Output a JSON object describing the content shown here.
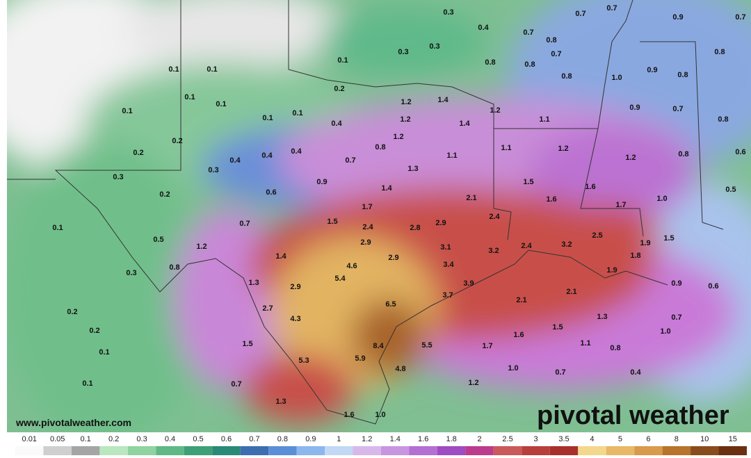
{
  "watermark": "www.pivotalweather.com",
  "logo": "pivotal weather",
  "map_labels": [
    "0.3",
    "0.7",
    "0.7",
    "0.9",
    "0.7",
    "0.4",
    "0.7",
    "0.8",
    "0.8",
    "0.3",
    "0.3",
    "0.1",
    "0.7",
    "0.8",
    "0.8",
    "0.8",
    "0.9",
    "0.8",
    "1.0",
    "0.1",
    "0.1",
    "0.2",
    "0.1",
    "0.1",
    "0.1",
    "0.1",
    "0.1",
    "0.4",
    "1.2",
    "1.4",
    "1.2",
    "0.9",
    "0.7",
    "0.8",
    "1.2",
    "1.4",
    "1.1",
    "0.2",
    "0.2",
    "1.2",
    "0.8",
    "1.1",
    "1.2",
    "1.2",
    "0.8",
    "0.6",
    "0.4",
    "0.4",
    "0.4",
    "0.7",
    "1.1",
    "1.3",
    "0.3",
    "0.3",
    "0.9",
    "1.5",
    "1.6",
    "0.5",
    "1.4",
    "0.2",
    "0.6",
    "2.1",
    "1.6",
    "1.0",
    "1.7",
    "1.7",
    "1.5",
    "2.4",
    "0.7",
    "0.1",
    "2.4",
    "2.8",
    "2.9",
    "2.5",
    "0.5",
    "1.2",
    "2.9",
    "3.1",
    "3.2",
    "2.4",
    "3.2",
    "1.9",
    "1.5",
    "1.4",
    "2.9",
    "4.6",
    "3.4",
    "1.8",
    "0.8",
    "0.3",
    "1.9",
    "5.4",
    "3.9",
    "1.3",
    "2.9",
    "0.9",
    "0.6",
    "2.1",
    "3.7",
    "2.1",
    "6.5",
    "2.7",
    "0.2",
    "1.3",
    "4.3",
    "0.7",
    "1.5",
    "0.2",
    "1.0",
    "1.6",
    "1.5",
    "0.1",
    "8.4",
    "5.5",
    "1.7",
    "1.1",
    "0.8",
    "5.3",
    "5.9",
    "4.8",
    "1.0",
    "0.7",
    "0.4",
    "0.1",
    "0.7",
    "1.2",
    "1.3",
    "1.6",
    "1.0"
  ],
  "colorbar": [
    {
      "label": "0.01",
      "color": "#fafafa"
    },
    {
      "label": "0.05",
      "color": "#cfcfcf"
    },
    {
      "label": "0.1",
      "color": "#a5a5a5"
    },
    {
      "label": "0.2",
      "color": "#b9e7c0"
    },
    {
      "label": "0.3",
      "color": "#8fd3a0"
    },
    {
      "label": "0.4",
      "color": "#5fb885"
    },
    {
      "label": "0.5",
      "color": "#3f9f76"
    },
    {
      "label": "0.6",
      "color": "#2a8a78"
    },
    {
      "label": "0.7",
      "color": "#3d6fb0"
    },
    {
      "label": "0.8",
      "color": "#5a8fd8"
    },
    {
      "label": "0.9",
      "color": "#8cb6ee"
    },
    {
      "label": "1",
      "color": "#c2d8f4"
    },
    {
      "label": "1.2",
      "color": "#d8b8ea"
    },
    {
      "label": "1.4",
      "color": "#c896e0"
    },
    {
      "label": "1.6",
      "color": "#b36fd2"
    },
    {
      "label": "1.8",
      "color": "#9f4bc2"
    },
    {
      "label": "2",
      "color": "#bb3c8c"
    },
    {
      "label": "2.5",
      "color": "#c85a5a"
    },
    {
      "label": "3",
      "color": "#b8403c"
    },
    {
      "label": "3.5",
      "color": "#a8302c"
    },
    {
      "label": "4",
      "color": "#f3d78c"
    },
    {
      "label": "5",
      "color": "#e8b868"
    },
    {
      "label": "6",
      "color": "#d89a4c"
    },
    {
      "label": "8",
      "color": "#b8742c"
    },
    {
      "label": "10",
      "color": "#8a4c1c"
    },
    {
      "label": "15",
      "color": "#6a3010"
    }
  ]
}
